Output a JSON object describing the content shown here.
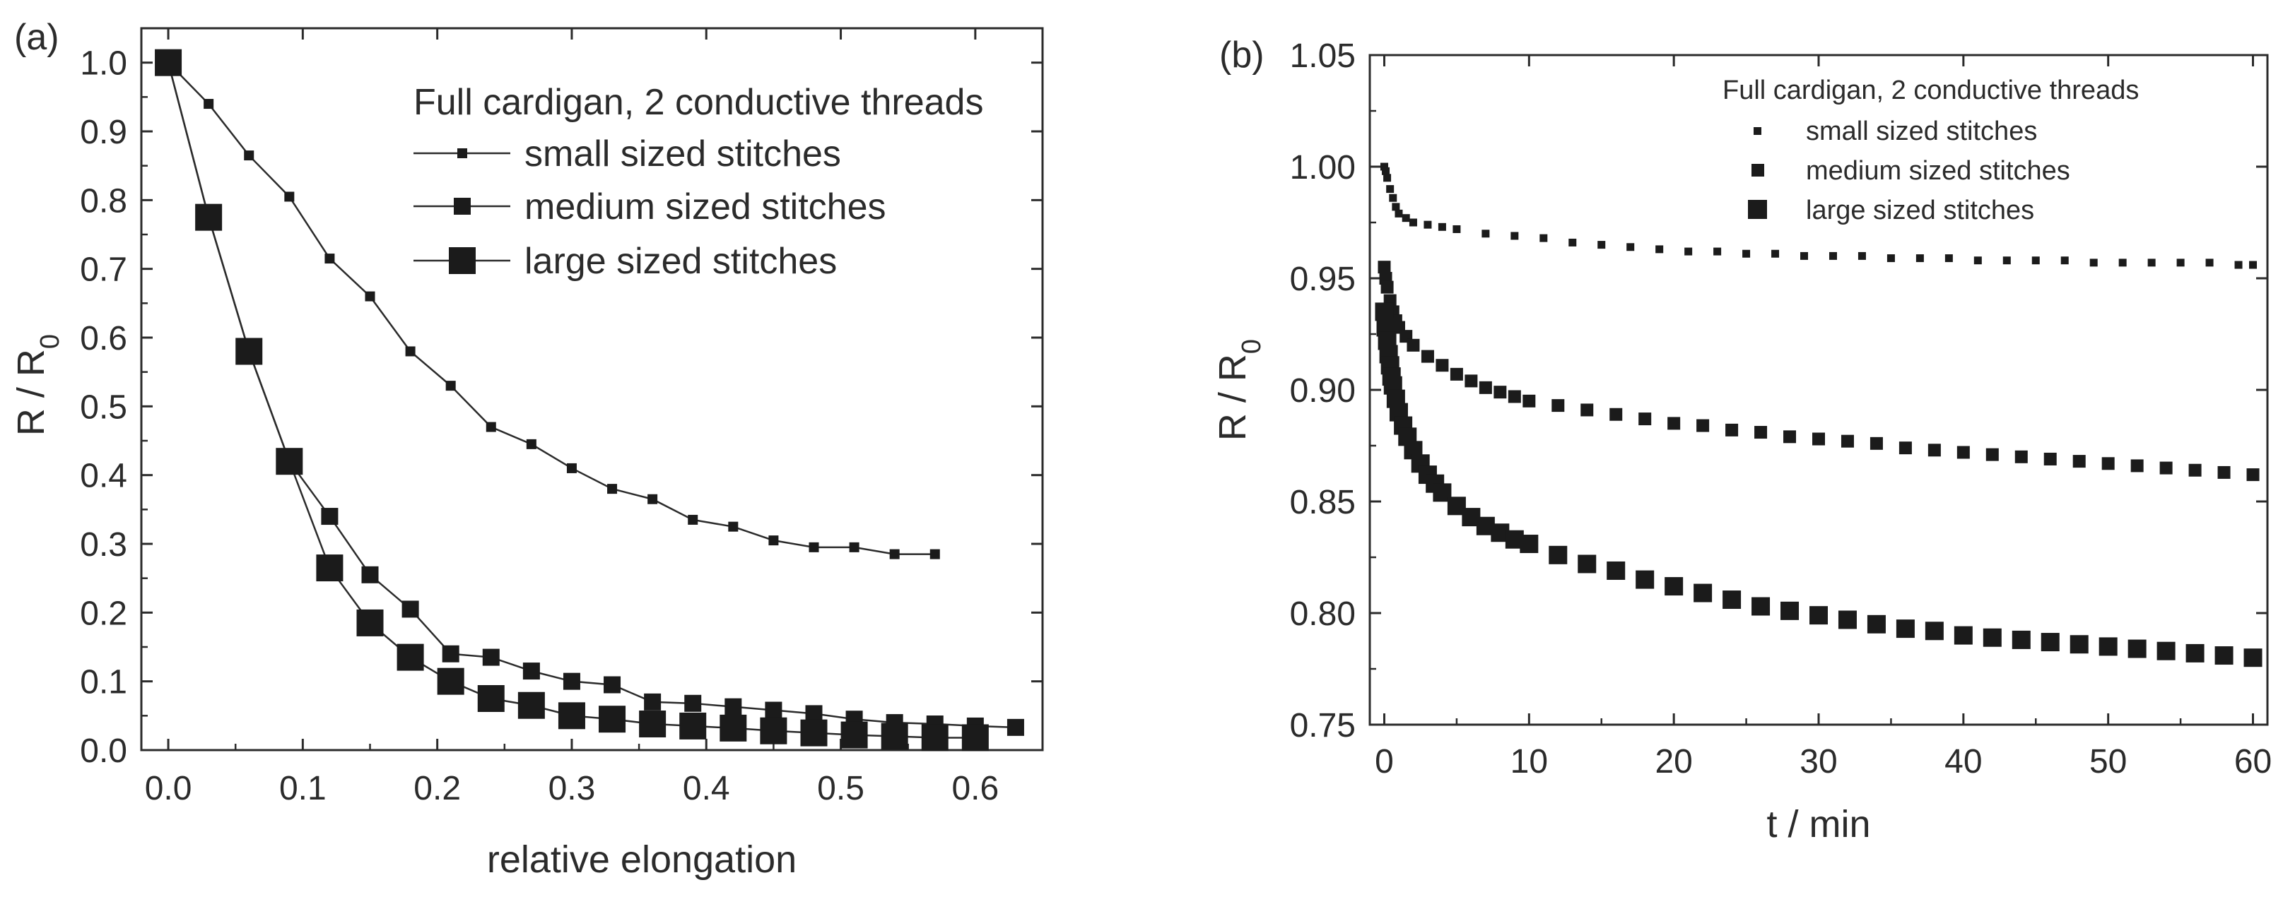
{
  "chart_data": [
    {
      "panel_label": "(a)",
      "type": "line",
      "xlabel": "relative elongation",
      "ylabel_main": "R / R",
      "ylabel_sub": "0",
      "xlim": [
        -0.02,
        0.65
      ],
      "ylim": [
        0.0,
        1.05
      ],
      "x_ticks": [
        0.0,
        0.1,
        0.2,
        0.3,
        0.4,
        0.5,
        0.6
      ],
      "x_tick_labels": [
        "0.0",
        "0.1",
        "0.2",
        "0.3",
        "0.4",
        "0.5",
        "0.6"
      ],
      "y_ticks": [
        0.0,
        0.1,
        0.2,
        0.3,
        0.4,
        0.5,
        0.6,
        0.7,
        0.8,
        0.9,
        1.0
      ],
      "y_tick_labels": [
        "0.0",
        "0.1",
        "0.2",
        "0.3",
        "0.4",
        "0.5",
        "0.6",
        "0.7",
        "0.8",
        "0.9",
        "1.0"
      ],
      "legend_title": "Full cardigan, 2 conductive threads",
      "legend_position": "top-right",
      "series": [
        {
          "name": "small sized stitches",
          "marker": "small-square",
          "x": [
            0.0,
            0.03,
            0.06,
            0.09,
            0.12,
            0.15,
            0.18,
            0.21,
            0.24,
            0.27,
            0.3,
            0.33,
            0.36,
            0.39,
            0.42,
            0.45,
            0.48,
            0.51,
            0.54,
            0.57
          ],
          "y": [
            1.0,
            0.94,
            0.865,
            0.805,
            0.715,
            0.66,
            0.58,
            0.53,
            0.47,
            0.445,
            0.41,
            0.38,
            0.365,
            0.335,
            0.325,
            0.305,
            0.295,
            0.295,
            0.285,
            0.285
          ]
        },
        {
          "name": "medium sized stitches",
          "marker": "medium-square",
          "x": [
            0.0,
            0.03,
            0.06,
            0.09,
            0.12,
            0.15,
            0.18,
            0.21,
            0.24,
            0.27,
            0.3,
            0.33,
            0.36,
            0.39,
            0.42,
            0.45,
            0.48,
            0.51,
            0.54,
            0.57,
            0.6,
            0.63
          ],
          "y": [
            1.0,
            0.775,
            0.58,
            0.42,
            0.34,
            0.255,
            0.205,
            0.14,
            0.135,
            0.115,
            0.1,
            0.095,
            0.07,
            0.068,
            0.063,
            0.058,
            0.053,
            0.045,
            0.04,
            0.038,
            0.035,
            0.033
          ]
        },
        {
          "name": "large sized stitches",
          "marker": "large-square",
          "x": [
            0.0,
            0.03,
            0.06,
            0.09,
            0.12,
            0.15,
            0.18,
            0.21,
            0.24,
            0.27,
            0.3,
            0.33,
            0.36,
            0.39,
            0.42,
            0.45,
            0.48,
            0.51,
            0.54,
            0.57,
            0.6
          ],
          "y": [
            1.0,
            0.775,
            0.58,
            0.42,
            0.265,
            0.185,
            0.135,
            0.1,
            0.075,
            0.065,
            0.05,
            0.045,
            0.038,
            0.035,
            0.032,
            0.028,
            0.025,
            0.022,
            0.02,
            0.018,
            0.018
          ]
        }
      ]
    },
    {
      "panel_label": "(b)",
      "type": "scatter",
      "xlabel": "t / min",
      "ylabel_main": "R / R",
      "ylabel_sub": "0",
      "xlim": [
        -1,
        61
      ],
      "ylim": [
        0.75,
        1.05
      ],
      "x_ticks": [
        0,
        10,
        20,
        30,
        40,
        50,
        60
      ],
      "x_tick_labels": [
        "0",
        "10",
        "20",
        "30",
        "40",
        "50",
        "60"
      ],
      "y_ticks": [
        0.75,
        0.8,
        0.85,
        0.9,
        0.95,
        1.0,
        1.05
      ],
      "y_tick_labels": [
        "0.75",
        "0.80",
        "0.85",
        "0.90",
        "0.95",
        "1.00",
        "1.05"
      ],
      "legend_title": "Full cardigan, 2 conductive threads",
      "legend_position": "top-right",
      "series": [
        {
          "name": "small sized stitches",
          "marker": "small-square",
          "x": [
            0,
            0.1,
            0.2,
            0.4,
            0.6,
            0.8,
            1.0,
            1.5,
            2,
            3,
            4,
            5,
            7,
            9,
            11,
            13,
            15,
            17,
            19,
            21,
            23,
            25,
            27,
            29,
            31,
            33,
            35,
            37,
            39,
            41,
            43,
            45,
            47,
            49,
            51,
            53,
            55,
            57,
            59,
            60
          ],
          "y": [
            1.0,
            0.998,
            0.995,
            0.99,
            0.986,
            0.982,
            0.979,
            0.977,
            0.975,
            0.974,
            0.973,
            0.972,
            0.97,
            0.969,
            0.968,
            0.966,
            0.965,
            0.964,
            0.963,
            0.962,
            0.962,
            0.961,
            0.961,
            0.96,
            0.96,
            0.96,
            0.959,
            0.959,
            0.959,
            0.958,
            0.958,
            0.958,
            0.958,
            0.957,
            0.957,
            0.957,
            0.957,
            0.957,
            0.956,
            0.956
          ]
        },
        {
          "name": "medium sized stitches",
          "marker": "medium-square",
          "x": [
            0,
            0.1,
            0.2,
            0.4,
            0.6,
            0.8,
            1.0,
            1.5,
            2,
            3,
            4,
            5,
            6,
            7,
            8,
            9,
            10,
            12,
            14,
            16,
            18,
            20,
            22,
            24,
            26,
            28,
            30,
            32,
            34,
            36,
            38,
            40,
            42,
            44,
            46,
            48,
            50,
            52,
            54,
            56,
            58,
            60
          ],
          "y": [
            0.955,
            0.95,
            0.946,
            0.94,
            0.935,
            0.931,
            0.928,
            0.924,
            0.92,
            0.915,
            0.911,
            0.907,
            0.904,
            0.901,
            0.899,
            0.897,
            0.895,
            0.893,
            0.891,
            0.889,
            0.887,
            0.885,
            0.884,
            0.882,
            0.881,
            0.879,
            0.878,
            0.877,
            0.876,
            0.874,
            0.873,
            0.872,
            0.871,
            0.87,
            0.869,
            0.868,
            0.867,
            0.866,
            0.865,
            0.864,
            0.863,
            0.862
          ]
        },
        {
          "name": "large sized stitches",
          "marker": "large-square",
          "x": [
            0,
            0.1,
            0.2,
            0.3,
            0.4,
            0.5,
            0.6,
            0.8,
            1.0,
            1.3,
            1.6,
            2,
            2.5,
            3,
            3.5,
            4,
            5,
            6,
            7,
            8,
            9,
            10,
            12,
            14,
            16,
            18,
            20,
            22,
            24,
            26,
            28,
            30,
            32,
            34,
            36,
            38,
            40,
            42,
            44,
            46,
            48,
            50,
            52,
            54,
            56,
            58,
            60
          ],
          "y": [
            0.935,
            0.928,
            0.922,
            0.916,
            0.911,
            0.906,
            0.902,
            0.896,
            0.89,
            0.884,
            0.879,
            0.873,
            0.867,
            0.862,
            0.858,
            0.854,
            0.848,
            0.843,
            0.839,
            0.836,
            0.833,
            0.831,
            0.826,
            0.822,
            0.819,
            0.815,
            0.812,
            0.809,
            0.806,
            0.803,
            0.801,
            0.799,
            0.797,
            0.795,
            0.793,
            0.792,
            0.79,
            0.789,
            0.788,
            0.787,
            0.786,
            0.785,
            0.784,
            0.783,
            0.782,
            0.781,
            0.78
          ]
        }
      ]
    }
  ]
}
